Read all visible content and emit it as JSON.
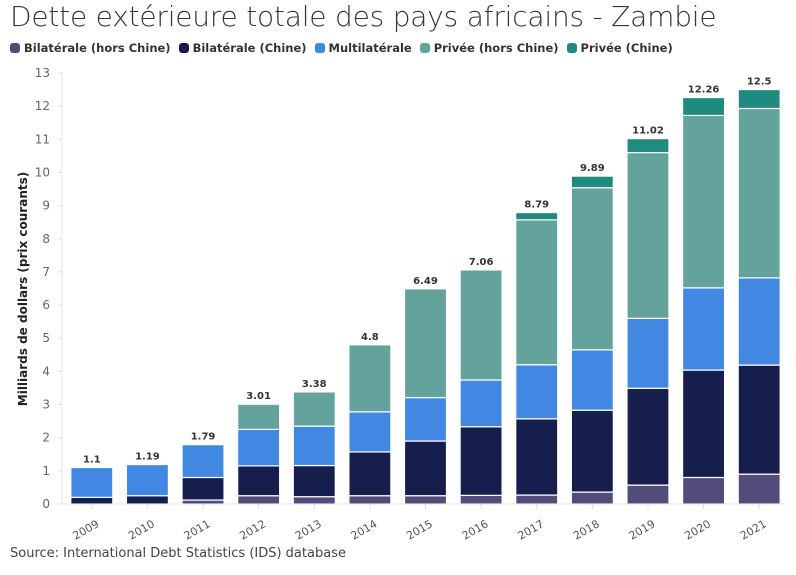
{
  "chart_data": {
    "type": "bar",
    "stacked": true,
    "title": "Dette extérieure totale des pays africains - Zambie",
    "xlabel": "",
    "ylabel": "Milliards de dollars (prix courants)",
    "ylim": [
      0,
      13
    ],
    "yticks": [
      0,
      1,
      2,
      3,
      4,
      5,
      6,
      7,
      8,
      9,
      10,
      11,
      12,
      13
    ],
    "grid": false,
    "legend_position": "top-left",
    "categories": [
      "2009",
      "2010",
      "2011",
      "2012",
      "2013",
      "2014",
      "2015",
      "2016",
      "2017",
      "2018",
      "2019",
      "2020",
      "2021"
    ],
    "series": [
      {
        "name": "Bilatérale (hors Chine)",
        "color": "#514c7a",
        "values": [
          0,
          0,
          0.12,
          0.25,
          0.22,
          0.25,
          0.25,
          0.26,
          0.27,
          0.36,
          0.57,
          0.8,
          0.9
        ]
      },
      {
        "name": "Bilatérale (Chine)",
        "color": "#161e4e",
        "values": [
          0.2,
          0.25,
          0.68,
          0.9,
          0.94,
          1.32,
          1.65,
          2.07,
          2.3,
          2.47,
          2.92,
          3.24,
          3.29
        ]
      },
      {
        "name": "Multilatérale",
        "color": "#4287e2",
        "values": [
          0.9,
          0.94,
          0.99,
          1.1,
          1.19,
          1.21,
          1.31,
          1.41,
          1.63,
          1.82,
          2.11,
          2.48,
          2.63
        ]
      },
      {
        "name": "Privée (hors Chine)",
        "color": "#64a39b",
        "values": [
          0,
          0,
          0,
          0.76,
          1.03,
          2.02,
          3.28,
          3.32,
          4.37,
          4.89,
          5.0,
          5.2,
          5.11
        ]
      },
      {
        "name": "Privée (Chine)",
        "color": "#1f8a80",
        "values": [
          0,
          0,
          0,
          0,
          0,
          0,
          0,
          0,
          0.22,
          0.35,
          0.42,
          0.54,
          0.57
        ]
      }
    ],
    "totals": [
      "1.1",
      "1.19",
      "1.79",
      "3.01",
      "3.38",
      "4.8",
      "6.49",
      "7.06",
      "8.79",
      "9.89",
      "11.02",
      "12.26",
      "12.5"
    ],
    "source": "Source: International Debt Statistics (IDS) database"
  }
}
